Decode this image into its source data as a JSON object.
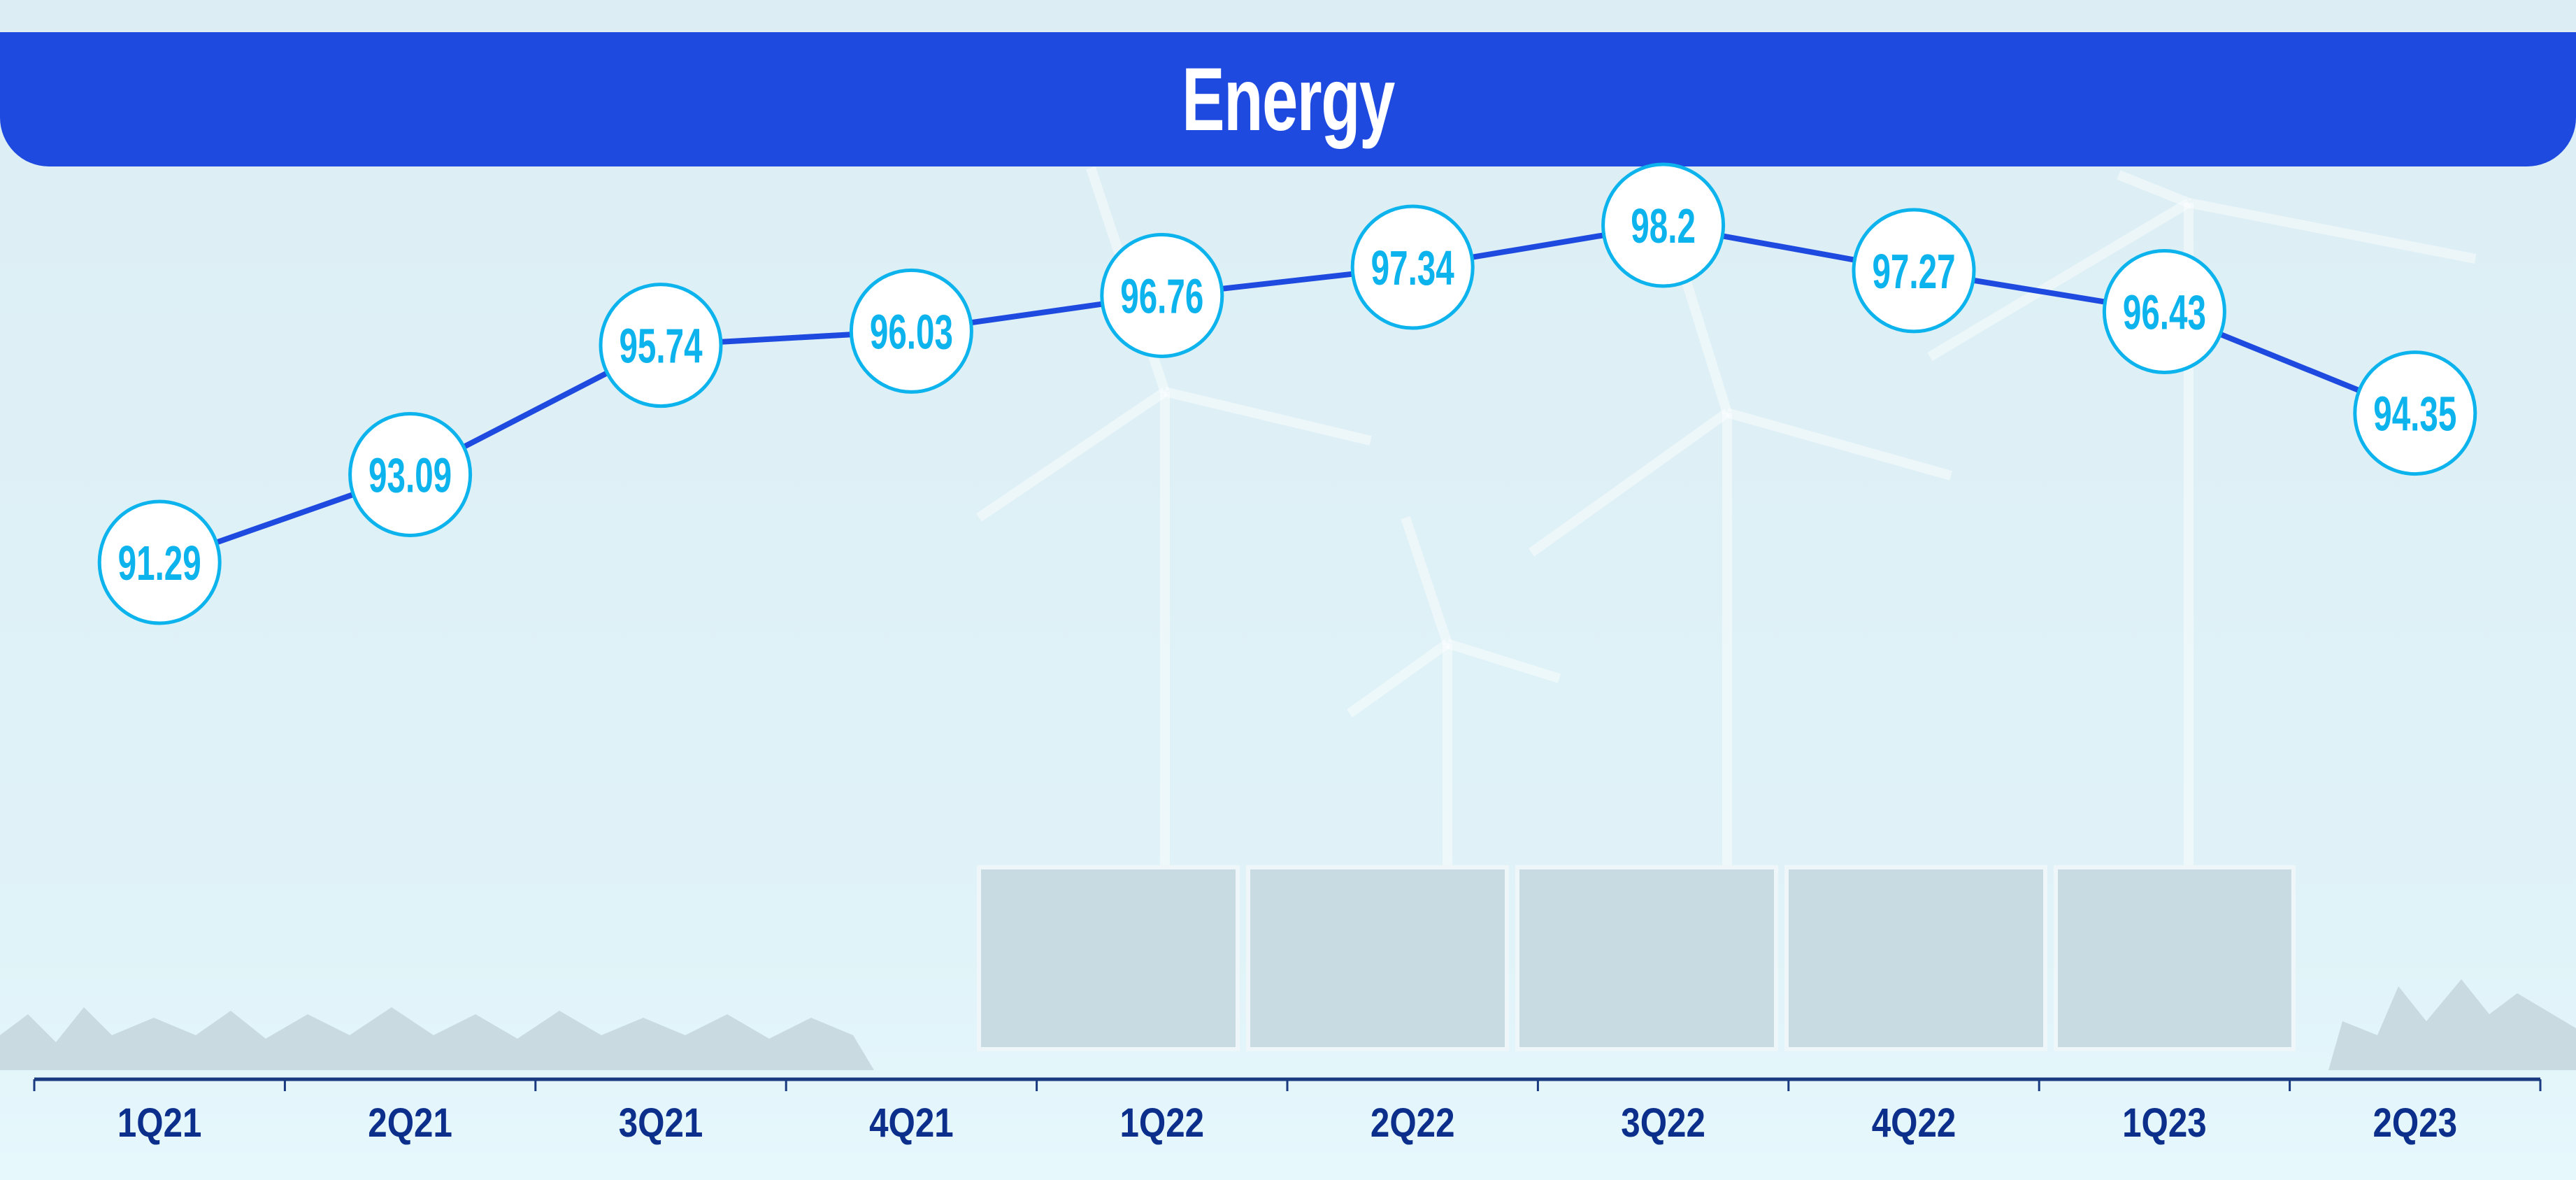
{
  "chart_data": {
    "type": "line",
    "title": "Energy",
    "categories": [
      "1Q21",
      "2Q21",
      "3Q21",
      "4Q21",
      "1Q22",
      "2Q22",
      "3Q22",
      "4Q22",
      "1Q23",
      "2Q23"
    ],
    "series": [
      {
        "name": "Energy",
        "values": [
          91.29,
          93.09,
          95.74,
          96.03,
          96.76,
          97.34,
          98.2,
          97.27,
          96.43,
          94.35
        ]
      }
    ],
    "labels": [
      "91.29",
      "93.09",
      "95.74",
      "96.03",
      "96.76",
      "97.34",
      "98.2",
      "97.27",
      "96.43",
      "94.35"
    ],
    "xlabel": "",
    "ylabel": "",
    "grid": false,
    "colors": {
      "line": "#1F4AE0",
      "marker_border": "#0DB3EC",
      "label": "#0DB3EC",
      "axis": "#1A3A80",
      "header": "#1F4AE0"
    }
  }
}
